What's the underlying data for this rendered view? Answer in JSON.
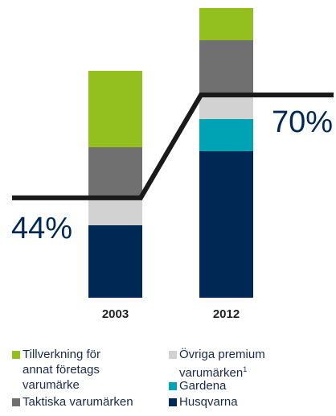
{
  "chart_data": {
    "type": "stacked_bar",
    "categories": [
      "2003",
      "2012"
    ],
    "series": [
      {
        "name": "Husqvarna",
        "color": "#002855",
        "values": [
          90,
          182
        ]
      },
      {
        "name": "Gardena",
        "color": "#00a3b4",
        "values": [
          0,
          40
        ]
      },
      {
        "name": "Övriga premium varumärken",
        "note": "1",
        "color": "#d2d2d2",
        "values": [
          34,
          30
        ]
      },
      {
        "name": "Taktiska varumärken",
        "color": "#707070",
        "values": [
          63,
          68
        ]
      },
      {
        "name": "Tillverkning för annat företags varumärke",
        "color": "#93c01f",
        "values": [
          95,
          40
        ]
      }
    ],
    "ylim": [
      0,
      360
    ],
    "line": {
      "color": "#1a1a1a",
      "values": [
        44,
        70
      ],
      "value_labels": [
        "44%",
        "70%"
      ]
    }
  }
}
